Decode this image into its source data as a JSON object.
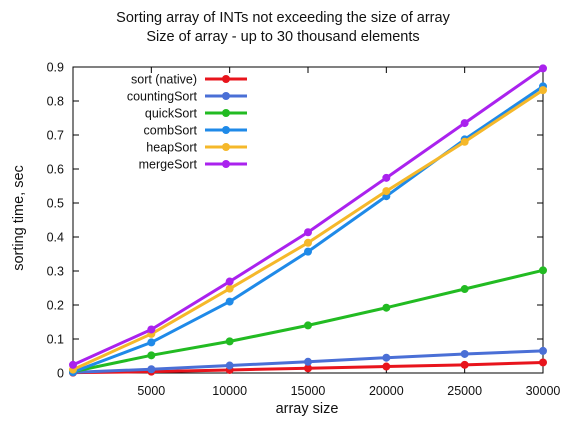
{
  "chart_data": {
    "type": "line",
    "title": "Sorting array of INTs not exceeding the size of array",
    "subtitle": "Size of array - up to 30 thousand elements",
    "xlabel": "array size",
    "ylabel": "sorting time, sec",
    "xlim": [
      0,
      30000
    ],
    "ylim": [
      0,
      0.9
    ],
    "xticks": [
      5000,
      10000,
      15000,
      20000,
      25000,
      30000
    ],
    "yticks": [
      0,
      0.1,
      0.2,
      0.3,
      0.4,
      0.5,
      0.6,
      0.7,
      0.8,
      0.9
    ],
    "ytick_labels": [
      "0",
      "0.1",
      "0.2",
      "0.3",
      "0.4",
      "0.5",
      "0.6",
      "0.7",
      "0.8",
      "0.9"
    ],
    "grid": false,
    "legend_position": "top-left",
    "x": [
      0,
      5000,
      10000,
      15000,
      20000,
      25000,
      30000
    ],
    "series": [
      {
        "name": "sort (native)",
        "color": "#e8141c",
        "values": [
          0.001,
          0.004,
          0.009,
          0.014,
          0.019,
          0.024,
          0.031
        ]
      },
      {
        "name": "countingSort",
        "color": "#4a6fd6",
        "values": [
          0.002,
          0.011,
          0.022,
          0.033,
          0.045,
          0.056,
          0.065
        ]
      },
      {
        "name": "quickSort",
        "color": "#22bb22",
        "values": [
          0.004,
          0.052,
          0.093,
          0.14,
          0.192,
          0.247,
          0.302
        ]
      },
      {
        "name": "combSort",
        "color": "#1f8ae8",
        "values": [
          0.003,
          0.09,
          0.21,
          0.357,
          0.52,
          0.687,
          0.843
        ]
      },
      {
        "name": "heapSort",
        "color": "#f5b82a",
        "values": [
          0.01,
          0.115,
          0.248,
          0.383,
          0.535,
          0.68,
          0.832
        ]
      },
      {
        "name": "mergeSort",
        "color": "#aa22ee",
        "values": [
          0.024,
          0.128,
          0.269,
          0.414,
          0.574,
          0.735,
          0.896
        ]
      }
    ]
  }
}
